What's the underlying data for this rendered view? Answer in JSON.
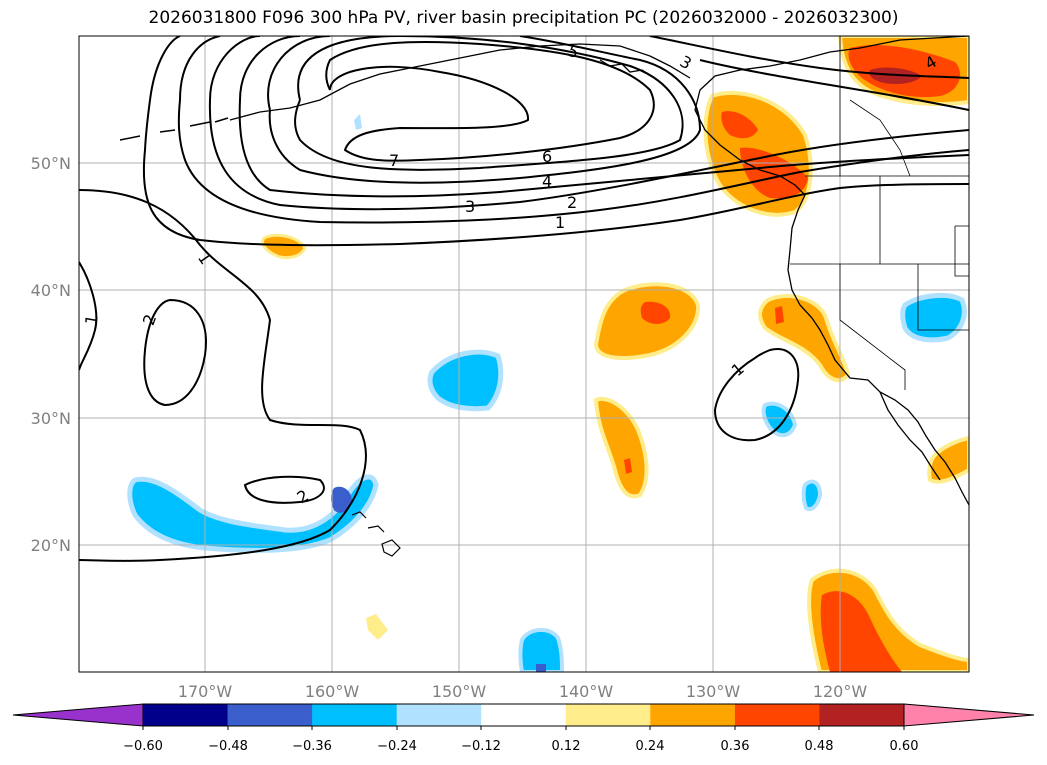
{
  "title": "2026031800 F096 300 hPa PV, river basin precipitation PC (2026032000 - 2026032300)",
  "map": {
    "lon_labels": [
      "170°W",
      "160°W",
      "150°W",
      "140°W",
      "130°W",
      "120°W"
    ],
    "lat_labels": [
      "50°N",
      "40°N",
      "30°N",
      "20°N"
    ],
    "pv_contour_labels": [
      "1",
      "1",
      "2",
      "3",
      "4",
      "5",
      "6",
      "7",
      "3",
      "2",
      "1",
      "2",
      "1",
      "4"
    ]
  },
  "colorbar": {
    "ticks": [
      "−0.60",
      "−0.48",
      "−0.36",
      "−0.24",
      "−0.12",
      "0.12",
      "0.24",
      "0.36",
      "0.48",
      "0.60"
    ],
    "colors": [
      "#9932cc",
      "#00008b",
      "#3a5fcd",
      "#00bfff",
      "#b0e2ff",
      "#ffffff",
      "#ffec8b",
      "#ffa500",
      "#ff4500",
      "#b22222",
      "#ff82ab"
    ]
  }
}
